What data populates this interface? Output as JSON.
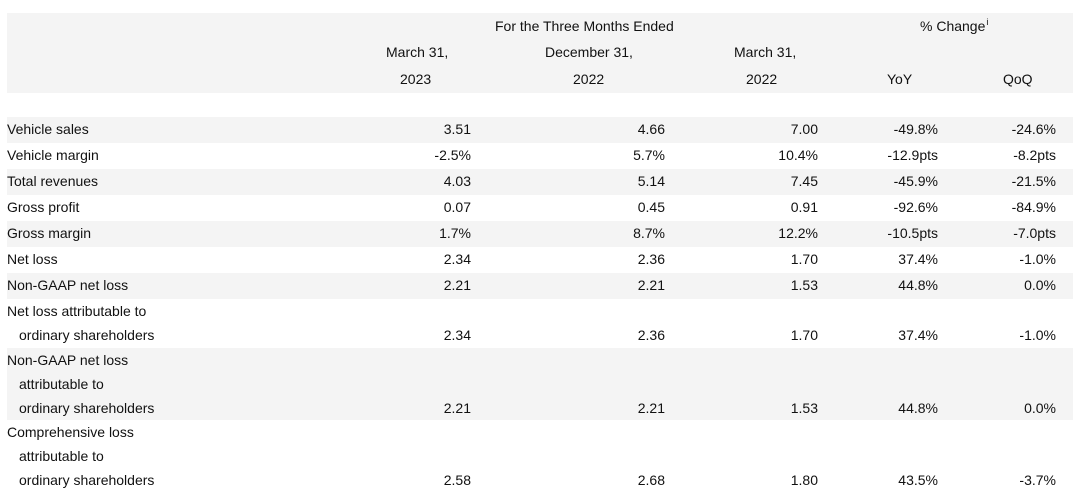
{
  "header": {
    "group_left": "For the Three Months Ended",
    "group_right": "% Change",
    "group_right_sup": "i",
    "col1_line1": "March 31,",
    "col1_line2": "2023",
    "col2_line1": "December 31,",
    "col2_line2": "2022",
    "col3_line1": "March 31,",
    "col3_line2": "2022",
    "col4": "YoY",
    "col5": "QoQ"
  },
  "rows": [
    {
      "label": [
        "Vehicle sales"
      ],
      "values": [
        "3.51",
        "4.66",
        "7.00",
        "-49.8%",
        "-24.6%"
      ]
    },
    {
      "label": [
        "Vehicle margin"
      ],
      "values": [
        "-2.5%",
        "5.7%",
        "10.4%",
        "-12.9pts",
        "-8.2pts"
      ]
    },
    {
      "label": [
        "Total revenues"
      ],
      "values": [
        "4.03",
        "5.14",
        "7.45",
        "-45.9%",
        "-21.5%"
      ]
    },
    {
      "label": [
        "Gross profit"
      ],
      "values": [
        "0.07",
        "0.45",
        "0.91",
        "-92.6%",
        "-84.9%"
      ]
    },
    {
      "label": [
        "Gross margin"
      ],
      "values": [
        "1.7%",
        "8.7%",
        "12.2%",
        "-10.5pts",
        "-7.0pts"
      ]
    },
    {
      "label": [
        "Net loss"
      ],
      "values": [
        "2.34",
        "2.36",
        "1.70",
        "37.4%",
        "-1.0%"
      ]
    },
    {
      "label": [
        "Non-GAAP net loss"
      ],
      "values": [
        "2.21",
        "2.21",
        "1.53",
        "44.8%",
        "0.0%"
      ]
    },
    {
      "label": [
        "Net loss attributable to",
        "ordinary shareholders"
      ],
      "values": [
        "2.34",
        "2.36",
        "1.70",
        "37.4%",
        "-1.0%"
      ]
    },
    {
      "label": [
        "Non-GAAP net loss",
        "attributable to",
        "ordinary shareholders"
      ],
      "values": [
        "2.21",
        "2.21",
        "1.53",
        "44.8%",
        "0.0%"
      ]
    },
    {
      "label": [
        "Comprehensive loss",
        "attributable to",
        "ordinary shareholders"
      ],
      "values": [
        "2.58",
        "2.68",
        "1.80",
        "43.5%",
        "-3.7%"
      ]
    }
  ]
}
